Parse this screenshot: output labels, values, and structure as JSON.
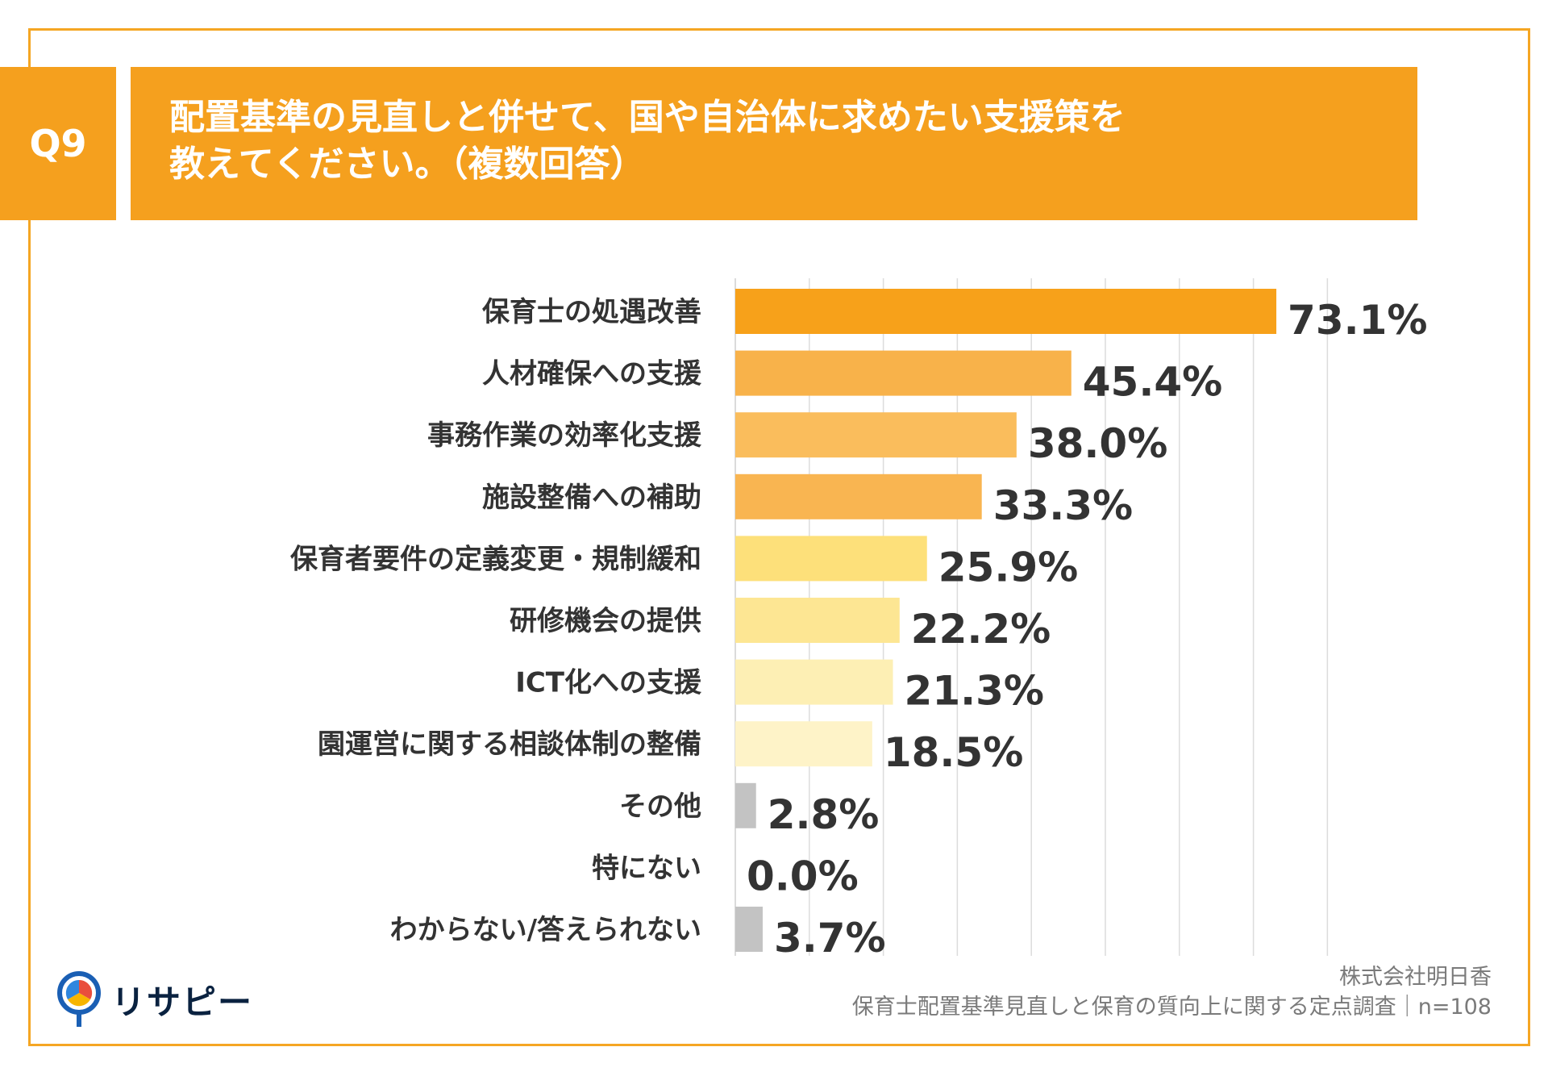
{
  "header": {
    "q_label": "Q9",
    "title_line1": "配置基準の見直しと併せて、国や自治体に求めたい支援策を",
    "title_line2": "教えてください。（複数回答）"
  },
  "chart_data": {
    "type": "bar",
    "orientation": "horizontal",
    "categories": [
      "保育士の処遇改善",
      "人材確保への支援",
      "事務作業の効率化支援",
      "施設整備への補助",
      "保育者要件の定義変更・規制緩和",
      "研修機会の提供",
      "ICT化への支援",
      "園運営に関する相談体制の整備",
      "その他",
      "特にない",
      "わからない/答えられない"
    ],
    "values": [
      73.1,
      45.4,
      38.0,
      33.3,
      25.9,
      22.2,
      21.3,
      18.5,
      2.8,
      0.0,
      3.7
    ],
    "value_labels": [
      "73.1%",
      "45.4%",
      "38.0%",
      "33.3%",
      "25.9%",
      "22.2%",
      "21.3%",
      "18.5%",
      "2.8%",
      "0.0%",
      "3.7%"
    ],
    "colors": [
      "#f7a11a",
      "#f8b24a",
      "#fabd5c",
      "#f9b551",
      "#fde07a",
      "#fde693",
      "#fdefb4",
      "#fef3c8",
      "#c3c3c3",
      "#c3c3c3",
      "#c3c3c3"
    ],
    "xlim": [
      0,
      80
    ],
    "grid": true,
    "unit": "%"
  },
  "footer": {
    "logo_text": "リサピー",
    "source_company": "株式会社明日香",
    "source_survey": "保育士配置基準見直しと保育の質向上に関する定点調査｜n=108"
  }
}
